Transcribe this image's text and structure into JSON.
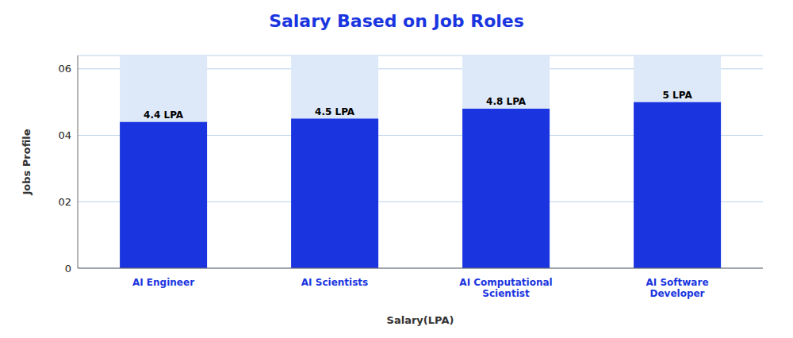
{
  "chart_data": {
    "type": "bar",
    "title": "Salary Based on Job Roles",
    "xlabel": "Salary(LPA)",
    "ylabel": "Jobs Profile",
    "categories": [
      "AI Engineer",
      "AI Scientists",
      "AI Computational\nScientist",
      "AI Software\nDeveloper"
    ],
    "values": [
      4.4,
      4.5,
      4.8,
      5.0
    ],
    "value_labels": [
      "4.4 LPA",
      "4.5 LPA",
      "4.8 LPA",
      "5 LPA"
    ],
    "data_labels": true,
    "color": "#1a35e0",
    "ylim": [
      0,
      6.4
    ],
    "yticks": [
      0,
      {
        "value": 2,
        "label": "02"
      },
      {
        "value": 4,
        "label": "04"
      },
      {
        "value": 6,
        "label": "06"
      }
    ],
    "grid": true
  }
}
